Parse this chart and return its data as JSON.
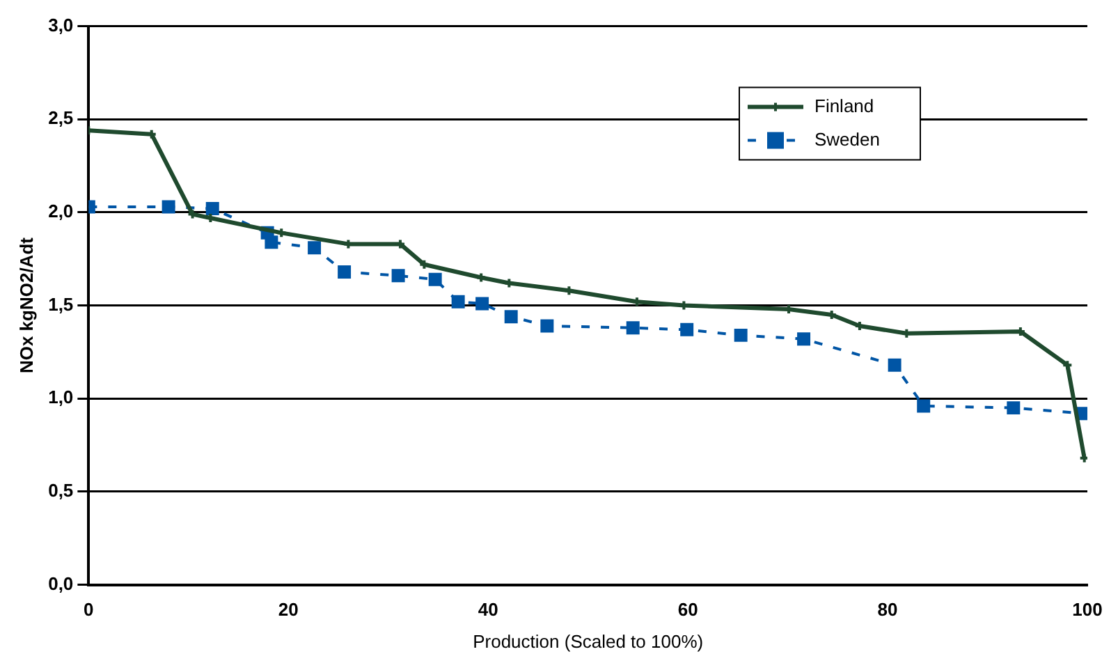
{
  "chart_data": {
    "type": "line",
    "xlabel": "Production (Scaled to 100%)",
    "ylabel": "NOx kgNO2/Adt",
    "xlim": [
      0,
      100
    ],
    "xticks": [
      0,
      20,
      40,
      60,
      80,
      100
    ],
    "ylim": [
      0,
      3
    ],
    "yticks": [
      {
        "value": 0,
        "label": "0,0"
      },
      {
        "value": 0.5,
        "label": "0,5"
      },
      {
        "value": 1,
        "label": "1,0"
      },
      {
        "value": 1.5,
        "label": "1,5"
      },
      {
        "value": 2,
        "label": "2,0"
      },
      {
        "value": 2.5,
        "label": "2,5"
      },
      {
        "value": 3,
        "label": "3,0"
      }
    ],
    "grid": "y",
    "legend": "top right",
    "series": [
      {
        "name": "Finland",
        "color": "#1f4a2e",
        "marker": "cross",
        "line_style": "solid",
        "x": [
          0,
          6.3,
          10.4,
          12.2,
          19.3,
          26,
          31.2,
          33.6,
          39.3,
          42.1,
          48.1,
          54.9,
          59.6,
          70.1,
          74.4,
          77.2,
          81.9,
          93.3,
          98,
          99.7
        ],
        "values": [
          2.44,
          2.42,
          1.99,
          1.97,
          1.89,
          1.83,
          1.83,
          1.72,
          1.65,
          1.62,
          1.58,
          1.52,
          1.5,
          1.48,
          1.45,
          1.39,
          1.35,
          1.36,
          1.18,
          0.68
        ]
      },
      {
        "name": "Sweden",
        "color": "#0055a5",
        "marker": "square",
        "line_style": "dashed",
        "x": [
          0,
          8,
          12.4,
          17.9,
          18.3,
          22.6,
          25.6,
          31,
          34.7,
          37,
          39.4,
          42.3,
          45.9,
          54.5,
          59.9,
          65.3,
          71.6,
          80.7,
          83.6,
          92.6,
          99.6
        ],
        "values": [
          2.03,
          2.03,
          2.02,
          1.89,
          1.84,
          1.81,
          1.68,
          1.66,
          1.64,
          1.52,
          1.51,
          1.44,
          1.39,
          1.38,
          1.37,
          1.34,
          1.32,
          1.18,
          0.96,
          0.95,
          0.92
        ]
      }
    ]
  }
}
